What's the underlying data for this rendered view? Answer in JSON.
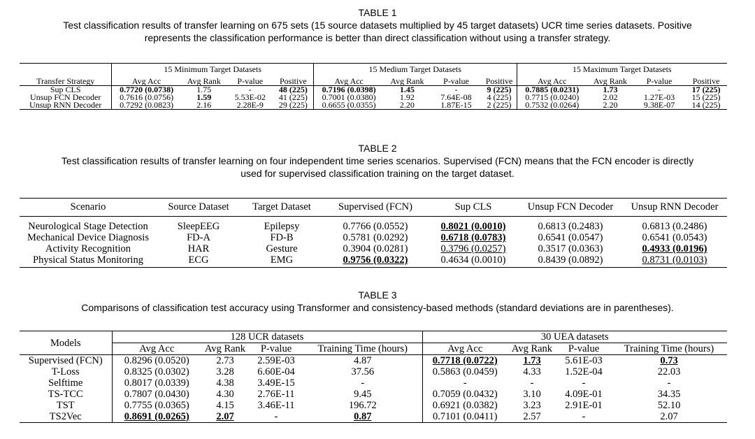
{
  "table1": {
    "title": "TABLE 1",
    "caption_line1": "Test classification results of transfer learning on 675 sets (15 source datasets multiplied by 45 target datasets) UCR time series datasets. Positive",
    "caption_line2": "represents the classification performance is better than direct classification without using a transfer strategy.",
    "groups": [
      "15 Minimum Target Datasets",
      "15 Medium Target Datasets",
      "15 Maximum Target Datasets"
    ],
    "headers": [
      "Transfer Strategy",
      "Avg Acc",
      "Avg Rank",
      "P-value",
      "Positive",
      "Avg Acc",
      "Avg Rank",
      "P-value",
      "Positive",
      "Avg Acc",
      "Avg Rank",
      "P-value",
      "Positive"
    ],
    "rows": [
      [
        "Sup CLS",
        "0.7720 (0.0738)",
        "1.75",
        "-",
        "48 (225)",
        "0.7196 (0.0398)",
        "1.45",
        "-",
        "9 (225)",
        "0.7885 (0.0231)",
        "1.73",
        "-",
        "17 (225)"
      ],
      [
        "Unsup FCN Decoder",
        "0.7616 (0.0756)",
        "1.59",
        "5.53E-02",
        "41 (225)",
        "0.7001 (0.0380)",
        "1.92",
        "7.64E-08",
        "4 (225)",
        "0.7715 (0.0240)",
        "2.02",
        "1.27E-03",
        "15 (225)"
      ],
      [
        "Unsup RNN Decoder",
        "0.7292 (0.0823)",
        "2.16",
        "2.28E-9",
        "29 (225)",
        "0.6655 (0.0355)",
        "2.20",
        "1.87E-15",
        "2 (225)",
        "0.7532 (0.0264)",
        "2.20",
        "9.38E-07",
        "14 (225)"
      ]
    ]
  },
  "table2": {
    "title": "TABLE 2",
    "caption_line1": "Test classification results of transfer learning on four independent time series scenarios. Supervised (FCN) means that the FCN encoder is directly",
    "caption_line2": "used for supervised classification training on the target dataset.",
    "headers": [
      "Scenario",
      "Source Dataset",
      "Target Dataset",
      "Supervised (FCN)",
      "Sup CLS",
      "Unsup FCN Decoder",
      "Unsup RNN Decoder"
    ],
    "rows": [
      [
        "Neurological Stage Detection",
        "SleepEEG",
        "Epilepsy",
        "0.7766 (0.0552)",
        "0.8021 (0.0010)",
        "0.6813 (0.2483)",
        "0.6813 (0.2486)"
      ],
      [
        "Mechanical Device Diagnosis",
        "FD-A",
        "FD-B",
        "0.5781 (0.0292)",
        "0.6718 (0.0783)",
        "0.6541 (0.0547)",
        "0.6541 (0.0543)"
      ],
      [
        "Activity Recognition",
        "HAR",
        "Gesture",
        "0.3904 (0.0281)",
        "0.3796 (0.0257)",
        "0.3517 (0.0363)",
        "0.4933 (0.0196)"
      ],
      [
        "Physical Status Monitoring",
        "ECG",
        "EMG",
        "0.9756 (0.0322)",
        "0.4634 (0.0010)",
        "0.8439 (0.0892)",
        "0.8731 (0.0103)"
      ]
    ]
  },
  "table3": {
    "title": "TABLE 3",
    "caption": "Comparisons of classification test accuracy using Transformer and consistency-based methods (standard deviations are in parentheses).",
    "models_header": "Models",
    "groups": [
      "128 UCR datasets",
      "30 UEA datasets"
    ],
    "headers": [
      "Avg Acc",
      "Avg Rank",
      "P-value",
      "Training Time (hours)",
      "Avg Acc",
      "Avg Rank",
      "P-value",
      "Training Time (hours)"
    ],
    "rows": [
      [
        "Supervised (FCN)",
        "0.8296 (0.0520)",
        "2.73",
        "2.59E-03",
        "4.87",
        "0.7718 (0.0722)",
        "1.73",
        "5.61E-03",
        "0.73"
      ],
      [
        "T-Loss",
        "0.8325 (0.0302)",
        "3.28",
        "6.60E-04",
        "37.56",
        "0.5863 (0.0459)",
        "4.33",
        "1.52E-04",
        "22.03"
      ],
      [
        "Selftime",
        "0.8017 (0.0339)",
        "4.38",
        "3.49E-15",
        "-",
        "-",
        "-",
        "-",
        "-"
      ],
      [
        "TS-TCC",
        "0.7807 (0.0430)",
        "4.30",
        "2.76E-11",
        "9.45",
        "0.7059 (0.0432)",
        "3.10",
        "4.09E-01",
        "34.35"
      ],
      [
        "TST",
        "0.7755 (0.0365)",
        "4.15",
        "3.46E-11",
        "196.72",
        "0.6921 (0.0382)",
        "3.23",
        "2.91E-01",
        "52.10"
      ],
      [
        "TS2Vec",
        "0.8691 (0.0265)",
        "2.07",
        "-",
        "0.87",
        "0.7101 (0.0411)",
        "2.57",
        "-",
        "2.07"
      ]
    ]
  }
}
